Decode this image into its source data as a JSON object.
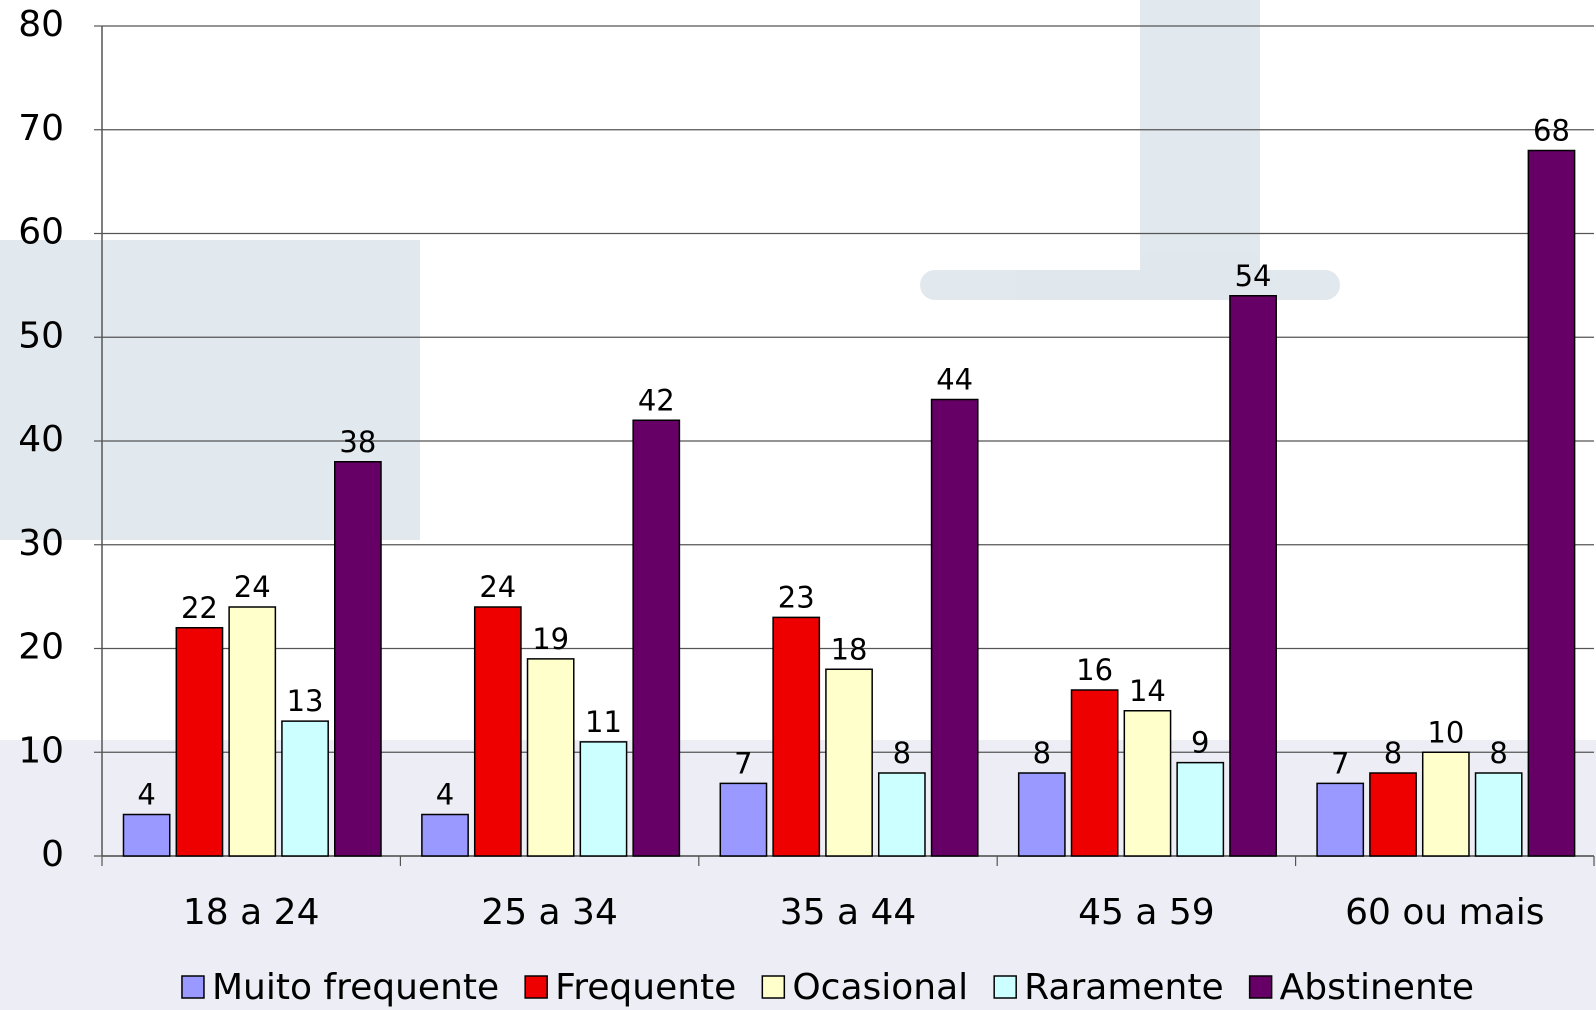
{
  "chart_data": {
    "type": "bar",
    "categories": [
      "18 a 24",
      "25 a 34",
      "35 a 44",
      "45 a 59",
      "60 ou mais"
    ],
    "series": [
      {
        "name": "Muito frequente",
        "color": "#9999ff",
        "values": [
          4,
          4,
          7,
          8,
          7
        ]
      },
      {
        "name": "Frequente",
        "color": "#ee0000",
        "values": [
          22,
          24,
          23,
          16,
          8
        ]
      },
      {
        "name": "Ocasional",
        "color": "#ffffcc",
        "values": [
          24,
          19,
          18,
          14,
          10
        ]
      },
      {
        "name": "Raramente",
        "color": "#ccffff",
        "values": [
          13,
          11,
          8,
          9,
          8
        ]
      },
      {
        "name": "Abstinente",
        "color": "#660066",
        "values": [
          38,
          42,
          44,
          54,
          68
        ]
      }
    ],
    "ylim": [
      0,
      80
    ],
    "yticks": [
      0,
      10,
      20,
      30,
      40,
      50,
      60,
      70,
      80
    ],
    "grid": true,
    "legend": "bottom"
  }
}
